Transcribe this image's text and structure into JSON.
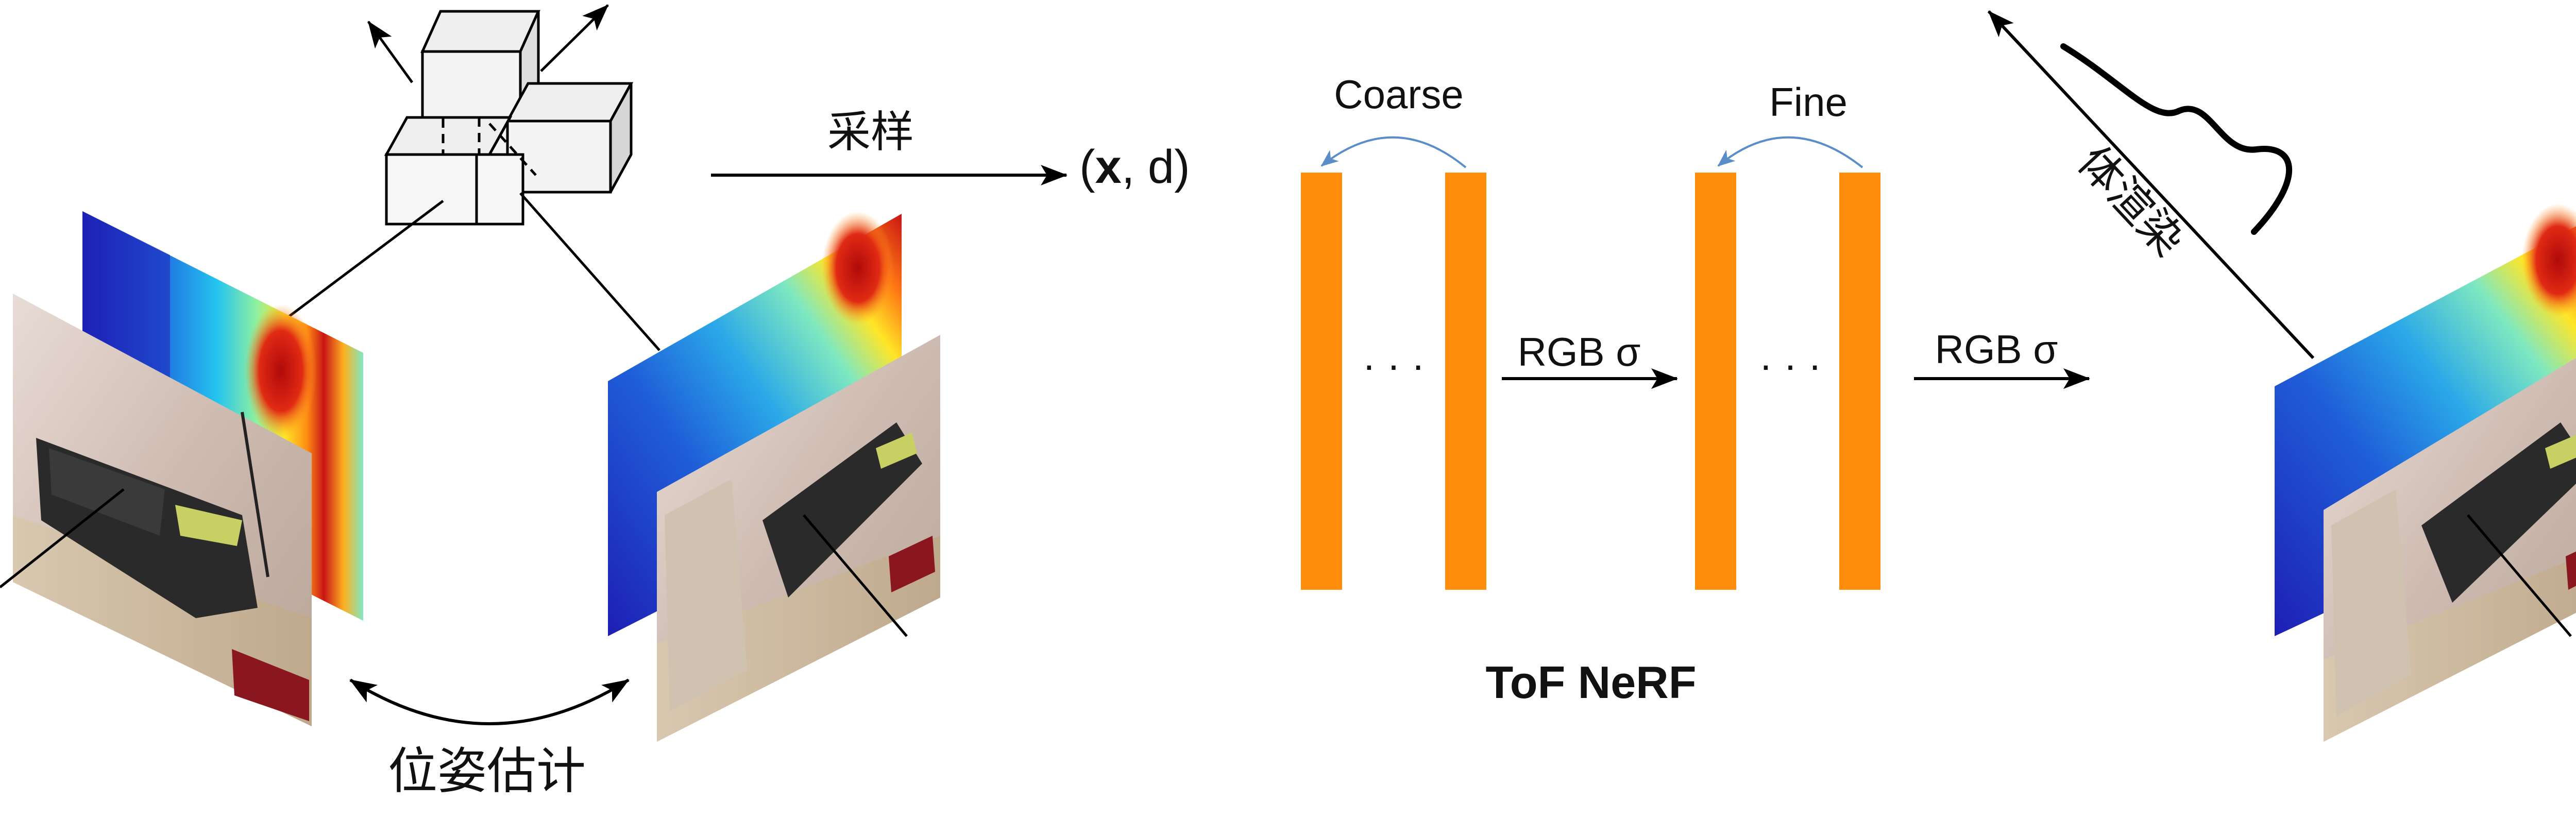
{
  "labels": {
    "sampling": "采样",
    "input_open": "(",
    "input_x": "x",
    "input_rest": ", d)",
    "coarse": "Coarse",
    "fine": "Fine",
    "ellipsis_left": "· · ·",
    "ellipsis_right": "· · ·",
    "rgb_sigma_mid": "RGB σ",
    "rgb_sigma_out": "RGB σ",
    "volume_render": "体渲染",
    "model_name": "ToF NeRF",
    "pose_estimation": "位姿估计"
  },
  "colors": {
    "mlp_bar": "#FF8C0A",
    "skip_arrow": "#5B8DC9",
    "line": "#000000",
    "depth_far": "#C81414",
    "depth_mid": "#FFE628",
    "depth_near": "#1E1EB4",
    "room_wall": "#D9C7BE",
    "sofa": "#2A2A2A",
    "rug": "#8A1720"
  },
  "icons": {
    "voxels": "voxel-cubes-icon",
    "depth_map": "depth-map-image",
    "rgb_frame": "rgb-frame-image",
    "density_curve": "density-curve-icon"
  }
}
